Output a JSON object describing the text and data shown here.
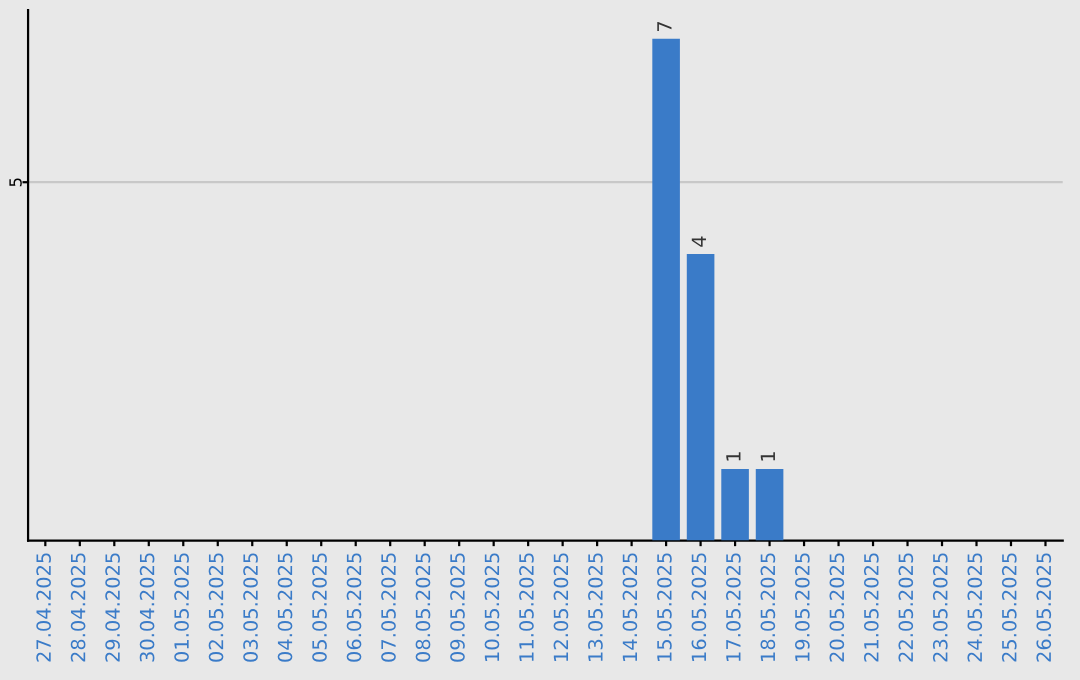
{
  "chart_data": {
    "type": "bar",
    "categories": [
      "27.04.2025",
      "28.04.2025",
      "29.04.2025",
      "30.04.2025",
      "01.05.2025",
      "02.05.2025",
      "03.05.2025",
      "04.05.2025",
      "05.05.2025",
      "06.05.2025",
      "07.05.2025",
      "08.05.2025",
      "09.05.2025",
      "10.05.2025",
      "11.05.2025",
      "12.05.2025",
      "13.05.2025",
      "14.05.2025",
      "15.05.2025",
      "16.05.2025",
      "17.05.2025",
      "18.05.2025",
      "19.05.2025",
      "20.05.2025",
      "21.05.2025",
      "22.05.2025",
      "23.05.2025",
      "24.05.2025",
      "25.05.2025",
      "26.05.2025"
    ],
    "values": [
      null,
      null,
      null,
      null,
      null,
      null,
      null,
      null,
      null,
      null,
      null,
      null,
      null,
      null,
      null,
      null,
      null,
      null,
      7,
      4,
      1,
      1,
      null,
      null,
      null,
      null,
      null,
      null,
      null,
      null
    ],
    "data_labels": true,
    "color": "#3a7bc8",
    "ylim": [
      0,
      7.4
    ],
    "yticks": [
      5
    ],
    "grid": "y"
  }
}
